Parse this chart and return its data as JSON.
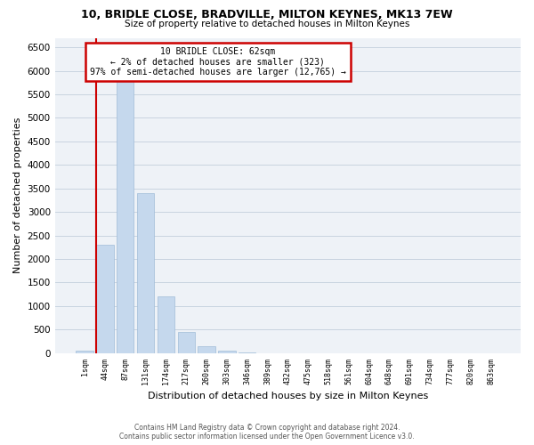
{
  "title1": "10, BRIDLE CLOSE, BRADVILLE, MILTON KEYNES, MK13 7EW",
  "title2": "Size of property relative to detached houses in Milton Keynes",
  "xlabel": "Distribution of detached houses by size in Milton Keynes",
  "ylabel": "Number of detached properties",
  "categories": [
    "1sqm",
    "44sqm",
    "87sqm",
    "131sqm",
    "174sqm",
    "217sqm",
    "260sqm",
    "303sqm",
    "346sqm",
    "389sqm",
    "432sqm",
    "475sqm",
    "518sqm",
    "561sqm",
    "604sqm",
    "648sqm",
    "691sqm",
    "734sqm",
    "777sqm",
    "820sqm",
    "863sqm"
  ],
  "values": [
    50,
    2300,
    6000,
    3400,
    1200,
    450,
    150,
    60,
    10,
    2,
    0,
    0,
    0,
    0,
    0,
    0,
    0,
    0,
    0,
    0,
    0
  ],
  "bar_color": "#c5d8ed",
  "bar_edge_color": "#a0bcd8",
  "vline_x_index": 1,
  "marker_line1": "10 BRIDLE CLOSE: 62sqm",
  "marker_line2": "← 2% of detached houses are smaller (323)",
  "marker_line3": "97% of semi-detached houses are larger (12,765) →",
  "annotation_box_color": "#ffffff",
  "annotation_box_edge": "#cc0000",
  "vline_color": "#cc0000",
  "grid_color": "#c8d4e0",
  "background_color": "#eef2f7",
  "footer1": "Contains HM Land Registry data © Crown copyright and database right 2024.",
  "footer2": "Contains public sector information licensed under the Open Government Licence v3.0.",
  "ylim": [
    0,
    6700
  ],
  "yticks": [
    0,
    500,
    1000,
    1500,
    2000,
    2500,
    3000,
    3500,
    4000,
    4500,
    5000,
    5500,
    6000,
    6500
  ]
}
